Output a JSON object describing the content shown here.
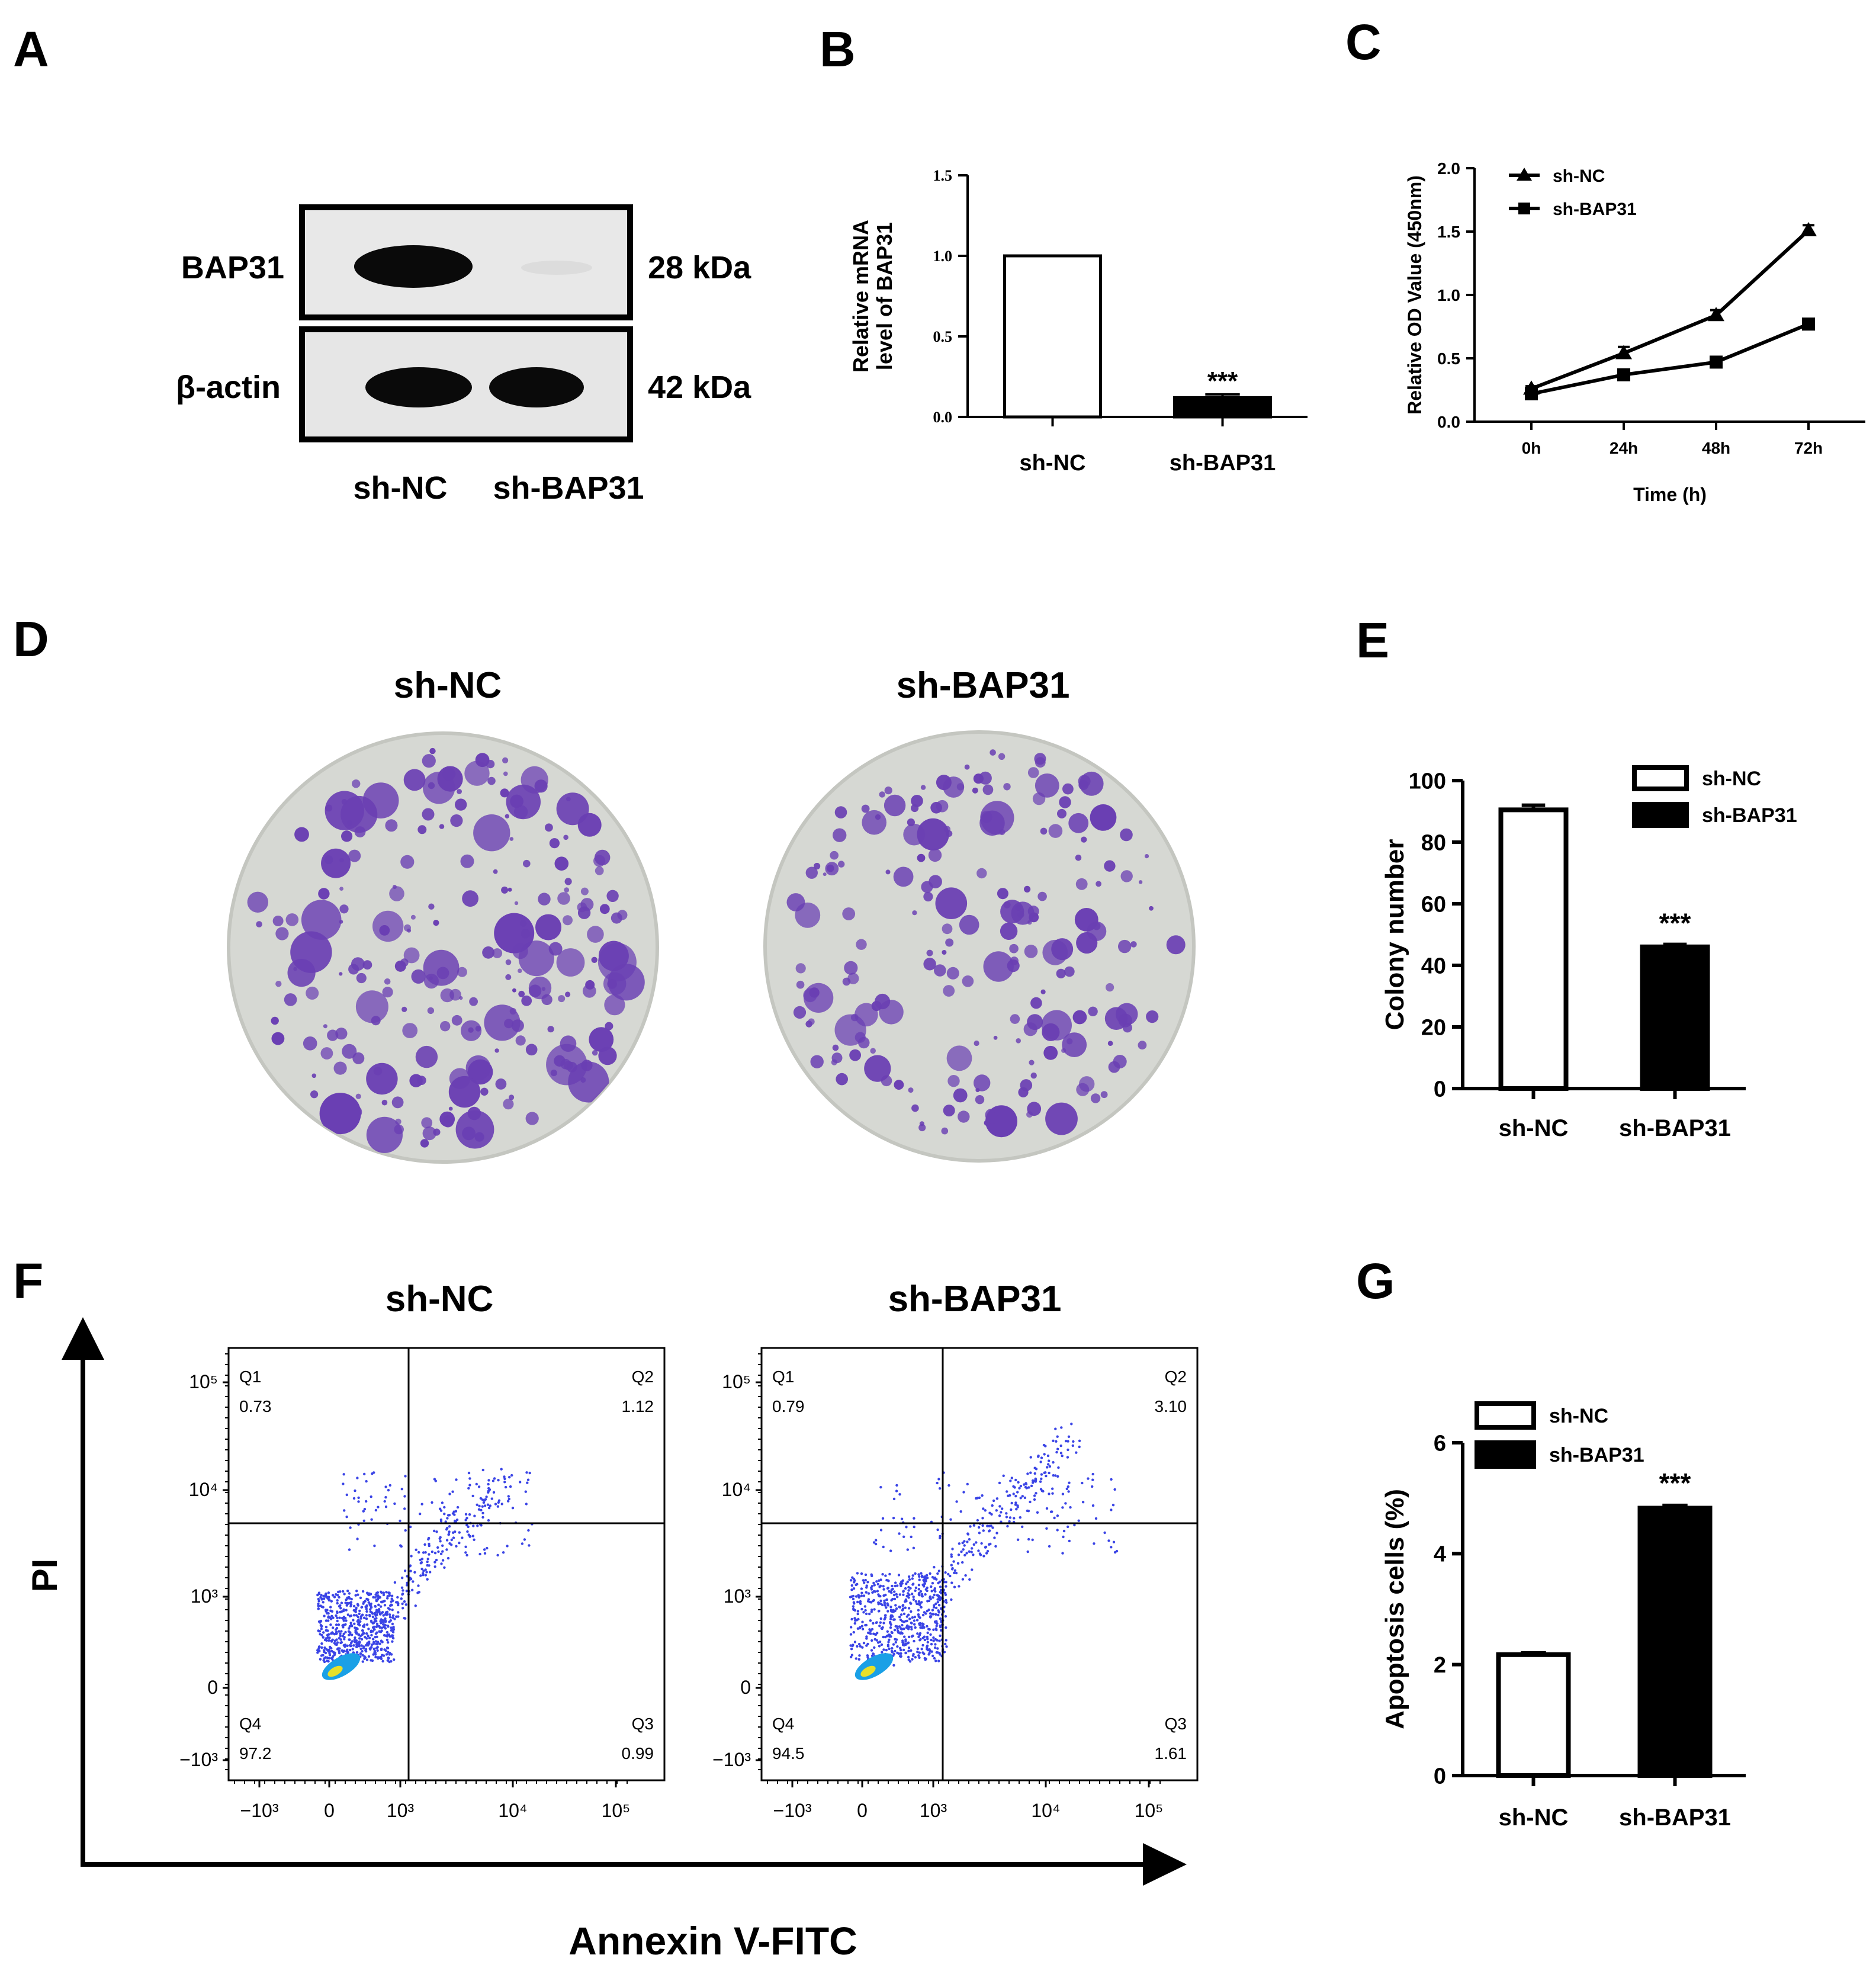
{
  "panels": {
    "A": {
      "letter": "A",
      "rows": [
        {
          "label": "BAP31",
          "mw": "28 kDa"
        },
        {
          "label": "β-actin",
          "mw": "42 kDa"
        }
      ],
      "lanes": [
        "sh-NC",
        "sh-BAP31"
      ]
    },
    "B": {
      "letter": "B"
    },
    "C": {
      "letter": "C"
    },
    "D": {
      "letter": "D",
      "titles": [
        "sh-NC",
        "sh-BAP31"
      ]
    },
    "E": {
      "letter": "E"
    },
    "F": {
      "letter": "F",
      "titles": [
        "sh-NC",
        "sh-BAP31"
      ],
      "ylabel": "PI",
      "xlabel": "Annexin V-FITC",
      "plots": [
        {
          "quadrants": {
            "Q1": "0.73",
            "Q2": "1.12",
            "Q3": "0.99",
            "Q4": "97.2"
          }
        },
        {
          "quadrants": {
            "Q1": "0.79",
            "Q2": "3.10",
            "Q3": "1.61",
            "Q4": "94.5"
          }
        }
      ],
      "quadrant_names": [
        "Q1",
        "Q2",
        "Q3",
        "Q4"
      ],
      "yticks": [
        "10⁵",
        "10⁴",
        "10³",
        "0",
        "−10³"
      ],
      "xticks": [
        "−10³",
        "0",
        "10³",
        "10⁴",
        "10⁵"
      ]
    },
    "G": {
      "letter": "G"
    }
  },
  "colors": {
    "colony_stain": "#6a3fb3",
    "plate_bg": "#d6d8d3",
    "flow_dots": "#3a44e6",
    "black": "#000000"
  },
  "chart_data": [
    {
      "panel": "B",
      "type": "bar",
      "categories": [
        "sh-NC",
        "sh-BAP31"
      ],
      "values": [
        1.0,
        0.12
      ],
      "errors": [
        0,
        0.02
      ],
      "fills": [
        "#ffffff",
        "#000000"
      ],
      "significance": [
        "",
        "***"
      ],
      "ylabel": "Relative mRNA level of BAP31",
      "ylim": [
        0,
        1.5
      ],
      "yticks": [
        "0.0",
        "0.5",
        "1.0",
        "1.5"
      ]
    },
    {
      "panel": "C",
      "type": "line",
      "x": [
        "0h",
        "24h",
        "48h",
        "72h"
      ],
      "series": [
        {
          "name": "sh-NC",
          "marker": "triangle",
          "values": [
            0.26,
            0.54,
            0.84,
            1.51
          ],
          "errors": [
            0.02,
            0.05,
            0.04,
            0.04
          ]
        },
        {
          "name": "sh-BAP31",
          "marker": "square",
          "values": [
            0.22,
            0.37,
            0.47,
            0.77
          ],
          "errors": [
            0.02,
            0.02,
            0.03,
            0.04
          ]
        }
      ],
      "xlabel": "Time (h)",
      "ylabel": "Relative OD Value (450nm)",
      "ylim": [
        0,
        2.0
      ],
      "yticks": [
        "0.0",
        "0.5",
        "1.0",
        "1.5",
        "2.0"
      ],
      "legend": "top-left"
    },
    {
      "panel": "E",
      "type": "bar",
      "categories": [
        "sh-NC",
        "sh-BAP31"
      ],
      "values": [
        90.5,
        46
      ],
      "errors": [
        1.5,
        0.8
      ],
      "fills": [
        "#ffffff",
        "#000000"
      ],
      "significance": [
        "",
        "***"
      ],
      "ylabel": "Colony number",
      "ylim": [
        0,
        100
      ],
      "yticks": [
        "0",
        "20",
        "40",
        "60",
        "80",
        "100"
      ],
      "legend_entries": [
        "sh-NC",
        "sh-BAP31"
      ],
      "legend": "top-right"
    },
    {
      "panel": "G",
      "type": "bar",
      "categories": [
        "sh-NC",
        "sh-BAP31"
      ],
      "values": [
        2.18,
        4.82
      ],
      "errors": [
        0.03,
        0.05
      ],
      "fills": [
        "#ffffff",
        "#000000"
      ],
      "significance": [
        "",
        "***"
      ],
      "ylabel": "Apoptosis cells (%)",
      "ylim": [
        0,
        6
      ],
      "yticks": [
        "0",
        "2",
        "4",
        "6"
      ],
      "legend_entries": [
        "sh-NC",
        "sh-BAP31"
      ],
      "legend": "top-left"
    }
  ]
}
